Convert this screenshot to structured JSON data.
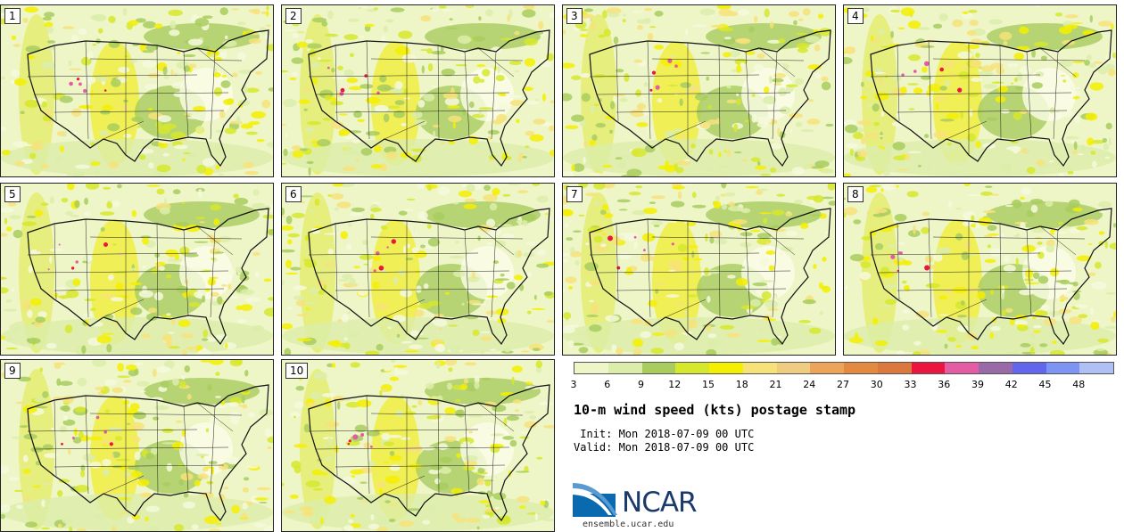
{
  "panels": [
    {
      "label": "1"
    },
    {
      "label": "2"
    },
    {
      "label": "3"
    },
    {
      "label": "4"
    },
    {
      "label": "5"
    },
    {
      "label": "6"
    },
    {
      "label": "7"
    },
    {
      "label": "8"
    },
    {
      "label": "9"
    },
    {
      "label": "10"
    }
  ],
  "legend": {
    "ticks": [
      "3",
      "6",
      "9",
      "12",
      "15",
      "18",
      "21",
      "24",
      "27",
      "30",
      "33",
      "36",
      "39",
      "42",
      "45",
      "48"
    ],
    "colors": [
      "#eef6c8",
      "#dcedaa",
      "#a8cc5e",
      "#d6e82c",
      "#f4ee00",
      "#f7e27a",
      "#f0cc80",
      "#eba45a",
      "#e48a40",
      "#db783e",
      "#ec1540",
      "#e45ca4",
      "#9a6aa8",
      "#6266ec",
      "#7e94f4",
      "#aec0f4"
    ]
  },
  "title": "10-m wind speed (kts) postage stamp",
  "init_line": " Init: Mon 2018-07-09 00 UTC",
  "valid_line": "Valid: Mon 2018-07-09 00 UTC",
  "logo": {
    "name": "NCAR",
    "url": "ensemble.ucar.edu"
  }
}
